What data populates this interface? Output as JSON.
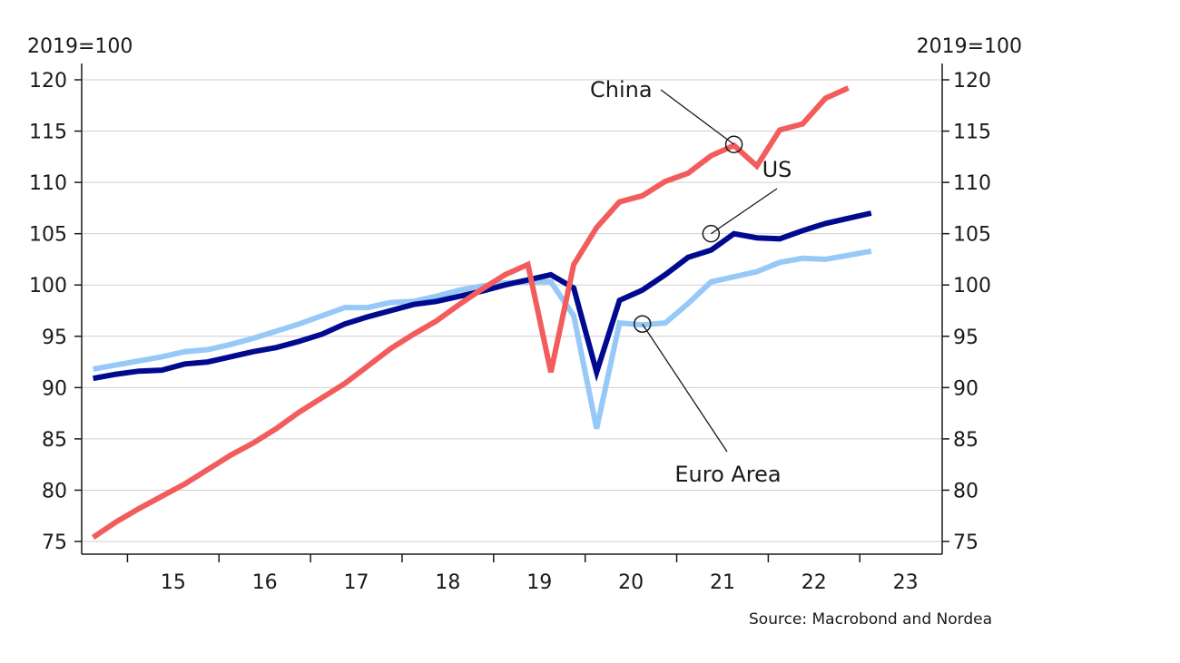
{
  "chart_data": {
    "type": "line",
    "y_unit_left": "2019=100",
    "y_unit_right": "2019=100",
    "ylim": [
      74,
      121
    ],
    "yticks": [
      75,
      80,
      85,
      90,
      95,
      100,
      105,
      110,
      115,
      120
    ],
    "xlim": [
      2014.5,
      2023.9
    ],
    "xtick_labels": [
      "15",
      "16",
      "17",
      "18",
      "19",
      "20",
      "21",
      "22",
      "23"
    ],
    "x_year_starts": [
      2015,
      2016,
      2017,
      2018,
      2019,
      2020,
      2021,
      2022,
      2023
    ],
    "grid": true,
    "source": "Source: Macrobond and Nordea",
    "x": [
      2014.625,
      2014.875,
      2015.125,
      2015.375,
      2015.625,
      2015.875,
      2016.125,
      2016.375,
      2016.625,
      2016.875,
      2017.125,
      2017.375,
      2017.625,
      2017.875,
      2018.125,
      2018.375,
      2018.625,
      2018.875,
      2019.125,
      2019.375,
      2019.625,
      2019.875,
      2020.125,
      2020.375,
      2020.625,
      2020.875,
      2021.125,
      2021.375,
      2021.625,
      2021.875,
      2022.125,
      2022.375,
      2022.625,
      2022.875,
      2023.125,
      2023.375,
      2023.625
    ],
    "series": [
      {
        "name": "China",
        "color": "#f25c5c",
        "values": [
          75.4,
          76.9,
          78.2,
          79.4,
          80.6,
          82.0,
          83.4,
          84.6,
          86.0,
          87.6,
          89.0,
          90.4,
          92.1,
          93.8,
          95.2,
          96.5,
          98.1,
          99.6,
          101.0,
          102.0,
          91.5,
          102.0,
          105.6,
          108.1,
          108.7,
          110.1,
          110.9,
          112.6,
          113.6,
          111.6,
          115.1,
          115.7,
          118.2,
          119.2,
          null,
          null,
          null
        ]
      },
      {
        "name": "US",
        "color": "#000a8f",
        "values": [
          90.9,
          91.3,
          91.6,
          91.7,
          92.3,
          92.5,
          93.0,
          93.5,
          93.9,
          94.5,
          95.2,
          96.2,
          96.9,
          97.5,
          98.1,
          98.4,
          98.9,
          99.4,
          100.0,
          100.5,
          101.0,
          99.7,
          91.5,
          98.5,
          99.5,
          101.0,
          102.7,
          103.4,
          105.0,
          104.6,
          104.5,
          105.3,
          106.0,
          106.5,
          107.0,
          null,
          null
        ]
      },
      {
        "name": "Euro Area",
        "color": "#96c8f8",
        "values": [
          91.8,
          92.2,
          92.6,
          93.0,
          93.5,
          93.7,
          94.2,
          94.8,
          95.5,
          96.2,
          97.0,
          97.8,
          97.8,
          98.3,
          98.4,
          98.9,
          99.5,
          99.9,
          100.2,
          100.3,
          100.3,
          97.0,
          86.0,
          96.3,
          96.1,
          96.3,
          98.2,
          100.3,
          100.8,
          101.3,
          102.2,
          102.6,
          102.5,
          102.9,
          103.3,
          null,
          null
        ]
      }
    ],
    "annotations": [
      {
        "label": "China",
        "series": "China",
        "point_x": 2021.625,
        "point_y": 113.7
      },
      {
        "label": "US",
        "series": "US",
        "point_x": 2021.375,
        "point_y": 105.0
      },
      {
        "label": "Euro Area",
        "series": "Euro Area",
        "point_x": 2020.625,
        "point_y": 96.2
      }
    ]
  }
}
